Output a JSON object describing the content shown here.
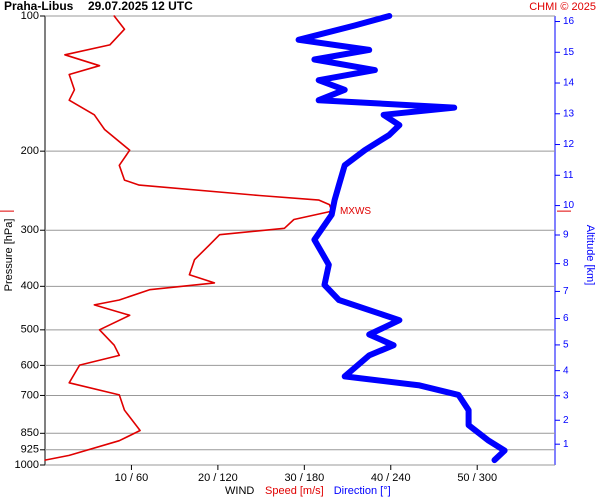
{
  "chart_data": {
    "type": "line",
    "title": "Praha-Libus",
    "subtitle": "29.07.2025 12 UTC",
    "credit": "CHMI © 2025",
    "ylabel": "Pressure [hPa]",
    "y2label": "Altitude [km]",
    "xlabel": "WIND",
    "annotation": "MXWS",
    "ylog": true,
    "grid": true,
    "ylim": [
      100,
      1000
    ],
    "yticks": [
      100,
      200,
      300,
      400,
      500,
      600,
      700,
      850,
      925,
      1000
    ],
    "y2ticks": [
      1,
      2,
      3,
      4,
      5,
      6,
      7,
      8,
      9,
      10,
      11,
      12,
      13,
      14,
      15,
      16
    ],
    "xlim": [
      0,
      59
    ],
    "x2lim": [
      0,
      354
    ],
    "xticks": [
      {
        "value": 10,
        "label": "10 / 60"
      },
      {
        "value": 20,
        "label": "20 / 120"
      },
      {
        "value": 30,
        "label": "30 / 180"
      },
      {
        "value": 40,
        "label": "40 / 240"
      },
      {
        "value": 50,
        "label": "50 / 300"
      }
    ],
    "series": [
      {
        "name": "Speed [m/s]",
        "color": "#e00000",
        "y": [
          100,
          107,
          116,
          122,
          129,
          135,
          146,
          154,
          166,
          179,
          199,
          215,
          232,
          238,
          251,
          257,
          263,
          272,
          284,
          297,
          307,
          324,
          349,
          377,
          393,
          407,
          429,
          440,
          464,
          500,
          541,
          570,
          599,
          656,
          698,
          755,
          838,
          883,
          952,
          975
        ],
        "values": [
          8,
          9.2,
          7.5,
          2.3,
          6.3,
          2.8,
          3.4,
          2.8,
          5.7,
          6.9,
          9.8,
          8.6,
          9.2,
          10.9,
          24.8,
          31.7,
          32.9,
          33.2,
          28.8,
          27.7,
          20.2,
          19,
          17.3,
          16.7,
          19.6,
          12.1,
          8.6,
          5.7,
          9.8,
          6.3,
          8,
          8.6,
          4,
          2.8,
          8.6,
          9.2,
          11,
          8.6,
          2.8,
          0
        ]
      },
      {
        "name": "Direction [°]",
        "color": "#0000ff",
        "axis": "x2",
        "y": [
          100,
          105,
          113,
          119,
          125,
          132,
          139,
          146,
          154,
          160,
          166,
          175,
          184,
          199,
          215,
          238,
          257,
          277,
          315,
          358,
          397,
          429,
          476,
          512,
          541,
          570,
          635,
          665,
          698,
          755,
          815,
          883,
          929,
          975
        ],
        "values": [
          239,
          215,
          176,
          225,
          187,
          229,
          190,
          208,
          190,
          284,
          235,
          246,
          239,
          222,
          208,
          204,
          201,
          199,
          187,
          197,
          194,
          204,
          246,
          225,
          242,
          225,
          208,
          260,
          287,
          294,
          294,
          308,
          319,
          312
        ]
      }
    ]
  }
}
